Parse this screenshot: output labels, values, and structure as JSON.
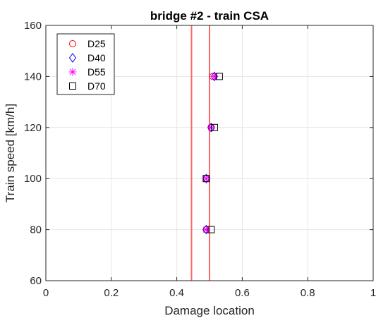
{
  "chart_data": {
    "type": "scatter",
    "title": "bridge #2 - train CSA",
    "xlabel": "Damage location",
    "ylabel": "Train speed [km/h]",
    "xlim": [
      0,
      1
    ],
    "ylim": [
      60,
      160
    ],
    "x_ticks": [
      "0",
      "0.2",
      "0.4",
      "0.6",
      "0.8",
      "1"
    ],
    "y_ticks": [
      "60",
      "80",
      "100",
      "120",
      "140",
      "160"
    ],
    "grid": true,
    "legend_position": "top-left",
    "reference_lines": [
      {
        "x": 0.445,
        "color": "#ff6666"
      },
      {
        "x": 0.5,
        "color": "#ff6666"
      }
    ],
    "series": [
      {
        "name": "D25",
        "marker": "circle",
        "color": "#ff0000",
        "x": [
          0.49,
          0.49,
          0.505,
          0.51
        ],
        "y": [
          80,
          100,
          120,
          140
        ]
      },
      {
        "name": "D40",
        "marker": "diamond",
        "color": "#0000ff",
        "x": [
          0.49,
          0.49,
          0.505,
          0.515
        ],
        "y": [
          80,
          100,
          120,
          140
        ]
      },
      {
        "name": "D55",
        "marker": "asterisk",
        "color": "#ff00ff",
        "x": [
          0.49,
          0.49,
          0.505,
          0.515
        ],
        "y": [
          80,
          100,
          120,
          140
        ]
      },
      {
        "name": "D70",
        "marker": "square",
        "color": "#000000",
        "x": [
          0.505,
          0.49,
          0.515,
          0.53
        ],
        "y": [
          80,
          100,
          120,
          140
        ]
      }
    ]
  }
}
